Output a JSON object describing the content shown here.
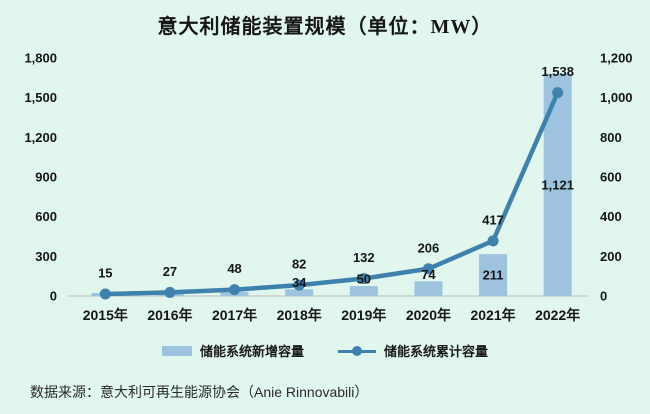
{
  "title": "意大利储能装置规模（单位：MW）",
  "source": "数据来源：意大利可再生能源协会（Anie Rinnovabili）",
  "colors": {
    "background": "#e1f6ec",
    "bar": "#9dc3de",
    "line": "#3f81ad",
    "text": "#161616",
    "axis_line": "#c9cec9"
  },
  "legend": {
    "bar_label": "储能系统新增容量",
    "line_label": "储能系统累计容量"
  },
  "chart_data": {
    "type": "bar",
    "subtype": "combo-bar-line-dual-axis",
    "title": "意大利储能装置规模（单位：MW）",
    "categories": [
      "2015年",
      "2016年",
      "2017年",
      "2018年",
      "2019年",
      "2020年",
      "2021年",
      "2022年"
    ],
    "series": [
      {
        "name": "储能系统新增容量",
        "type": "bar",
        "axis": "right",
        "values": [
          15,
          12,
          21,
          34,
          50,
          74,
          211,
          1121
        ],
        "labels": [
          "",
          "",
          "",
          "34",
          "50",
          "74",
          "211",
          "1,121"
        ]
      },
      {
        "name": "储能系统累计容量",
        "type": "line",
        "axis": "left",
        "values": [
          15,
          27,
          48,
          82,
          132,
          206,
          417,
          1538
        ],
        "labels": [
          "15",
          "27",
          "48",
          "82",
          "132",
          "206",
          "417",
          "1,538"
        ]
      }
    ],
    "left_axis": {
      "min": 0,
      "max": 1800,
      "ticks": [
        "1,800",
        "1,500",
        "1,200",
        "900",
        "600",
        "300",
        "0"
      ]
    },
    "right_axis": {
      "min": 0,
      "max": 1200,
      "ticks": [
        "1,200",
        "1,000",
        "800",
        "600",
        "400",
        "200",
        "0"
      ]
    },
    "grid": false,
    "legend_position": "bottom"
  }
}
